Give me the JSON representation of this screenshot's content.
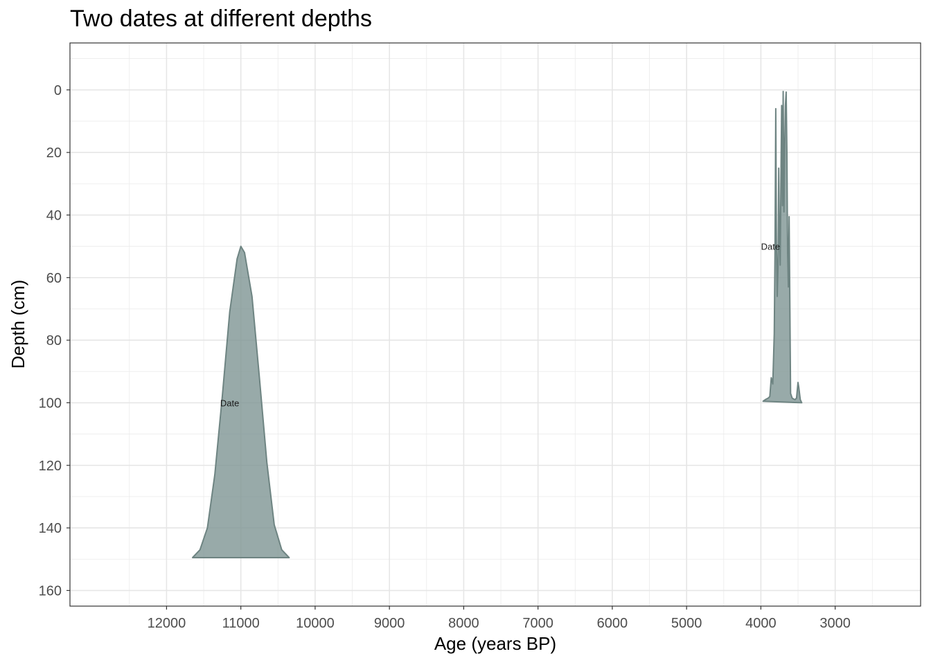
{
  "chart_data": {
    "type": "area",
    "title": "Two dates at different depths",
    "xlabel": "Age (years BP)",
    "ylabel": "Depth (cm)",
    "xlim": [
      13300,
      1850
    ],
    "ylim": [
      -15,
      165
    ],
    "x_reversed": true,
    "y_reversed": true,
    "x_ticks": [
      12000,
      11000,
      10000,
      9000,
      8000,
      7000,
      6000,
      5000,
      4000,
      3000
    ],
    "x_tick_labels": [
      "12000",
      "11000",
      "10000",
      "9000",
      "8000",
      "7000",
      "6000",
      "5000",
      "4000",
      "3000"
    ],
    "y_ticks": [
      0,
      20,
      40,
      60,
      80,
      100,
      120,
      140,
      160
    ],
    "y_tick_labels": [
      "0",
      "20",
      "40",
      "60",
      "80",
      "100",
      "120",
      "140",
      "160"
    ],
    "grid": true,
    "fill_color": "#7e9593",
    "line_color": "#6e8482",
    "series": [
      {
        "label": "Date",
        "depth": 150,
        "label_position": [
          11150,
          100
        ],
        "x": [
          11650,
          11550,
          11450,
          11350,
          11250,
          11150,
          11050,
          11000,
          10950,
          10850,
          10750,
          10650,
          10550,
          10450,
          10350
        ],
        "y": [
          149.5,
          147,
          140,
          123,
          98,
          71,
          54,
          50,
          52,
          66,
          92,
          119,
          139,
          147,
          149.5
        ]
      },
      {
        "label": "Date",
        "depth": 100,
        "label_position": [
          3870,
          50
        ],
        "x": [
          3970,
          3940,
          3900,
          3880,
          3860,
          3840,
          3820,
          3810,
          3800,
          3790,
          3780,
          3770,
          3760,
          3750,
          3740,
          3730,
          3720,
          3710,
          3700,
          3690,
          3680,
          3670,
          3660,
          3650,
          3640,
          3630,
          3620,
          3610,
          3600,
          3580,
          3560,
          3540,
          3520,
          3500,
          3490,
          3470,
          3450
        ],
        "y": [
          99.5,
          99,
          98.5,
          98,
          92,
          94,
          78,
          52,
          6,
          50,
          66,
          57,
          25,
          47,
          56,
          27,
          5,
          37,
          0.5,
          39,
          20,
          5,
          0.7,
          20,
          52,
          63,
          40.5,
          67,
          97,
          98.5,
          98.8,
          99,
          98.5,
          93.5,
          95,
          99,
          100
        ]
      }
    ]
  }
}
